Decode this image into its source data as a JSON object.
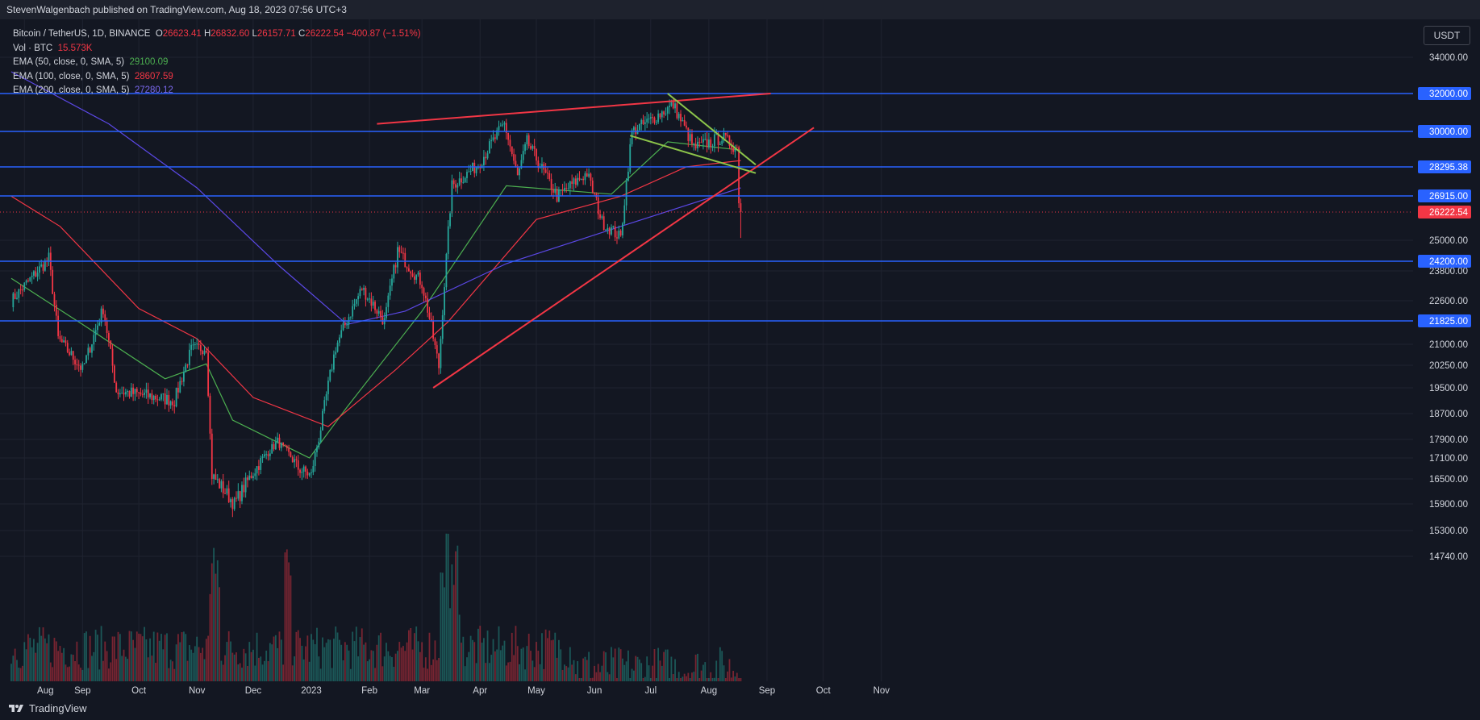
{
  "header": {
    "publisher": "StevenWalgenbach published on TradingView.com, Aug 18, 2023 07:56 UTC+3"
  },
  "legend": {
    "symbol": "Bitcoin / TetherUS, 1D, BINANCE",
    "o_label": "O",
    "o": "26623.41",
    "h_label": "H",
    "h": "26832.60",
    "l_label": "L",
    "l": "26157.71",
    "c_label": "C",
    "c": "26222.54",
    "change": "−400.87 (−1.51%)",
    "vol_label": "Vol · BTC",
    "vol": "15.573K",
    "ema50_label": "EMA (50, close, 0, SMA, 5)",
    "ema50": "29100.09",
    "ema100_label": "EMA (100, close, 0, SMA, 5)",
    "ema100": "28607.59",
    "ema200_label": "EMA (200, close, 0, SMA, 5)",
    "ema200": "27280.12"
  },
  "currency_button": "USDT",
  "footer": {
    "brand": "TradingView"
  },
  "colors": {
    "background": "#131722",
    "grid": "#1f2330",
    "up": "#26a69a",
    "down": "#f23645",
    "ema50": "#4caf50",
    "ema100": "#f23645",
    "ema200": "#5b48e6",
    "hline": "#2962ff",
    "trend_red": "#f23645",
    "trend_green": "#8bc34a",
    "text": "#d1d4dc"
  },
  "chart_data": {
    "type": "candlestick",
    "title": "Bitcoin / TetherUS, 1D, BINANCE",
    "y_axis_ticks": [
      "34000.00",
      "25000.00",
      "23800.00",
      "22600.00",
      "21000.00",
      "20250.00",
      "19500.00",
      "18700.00",
      "17900.00",
      "17100.00",
      "16500.00",
      "15900.00",
      "15300.00",
      "14740.00"
    ],
    "x_axis_labels": [
      "Aug",
      "Sep",
      "Oct",
      "Nov",
      "Dec",
      "2023",
      "Feb",
      "Mar",
      "Apr",
      "May",
      "Jun",
      "Jul",
      "Aug",
      "Sep",
      "Oct",
      "Nov"
    ],
    "horizontal_levels": [
      {
        "value": 32000,
        "label": "32000.00"
      },
      {
        "value": 30000,
        "label": "30000.00"
      },
      {
        "value": 28295.38,
        "label": "28295.38"
      },
      {
        "value": 26915,
        "label": "26915.00"
      },
      {
        "value": 24200,
        "label": "24200.00"
      },
      {
        "value": 21825,
        "label": "21825.00"
      }
    ],
    "last_price": {
      "value": 26222.54,
      "label": "26222.54"
    },
    "price_path": [
      {
        "date": "2022-07-25",
        "close": 22600
      },
      {
        "date": "2022-08-01",
        "close": 23200
      },
      {
        "date": "2022-08-14",
        "close": 24300
      },
      {
        "date": "2022-08-19",
        "close": 21200
      },
      {
        "date": "2022-09-01",
        "close": 20100
      },
      {
        "date": "2022-09-12",
        "close": 22300
      },
      {
        "date": "2022-09-19",
        "close": 19400
      },
      {
        "date": "2022-10-01",
        "close": 19300
      },
      {
        "date": "2022-10-20",
        "close": 19100
      },
      {
        "date": "2022-10-29",
        "close": 20800
      },
      {
        "date": "2022-11-06",
        "close": 20900
      },
      {
        "date": "2022-11-09",
        "close": 16600
      },
      {
        "date": "2022-11-21",
        "close": 15900
      },
      {
        "date": "2022-12-05",
        "close": 17000
      },
      {
        "date": "2022-12-14",
        "close": 17800
      },
      {
        "date": "2022-12-25",
        "close": 16800
      },
      {
        "date": "2023-01-01",
        "close": 16600
      },
      {
        "date": "2023-01-14",
        "close": 20900
      },
      {
        "date": "2023-01-28",
        "close": 23100
      },
      {
        "date": "2023-02-09",
        "close": 21800
      },
      {
        "date": "2023-02-16",
        "close": 24600
      },
      {
        "date": "2023-03-01",
        "close": 23300
      },
      {
        "date": "2023-03-10",
        "close": 20200
      },
      {
        "date": "2023-03-17",
        "close": 27400
      },
      {
        "date": "2023-03-31",
        "close": 28400
      },
      {
        "date": "2023-04-14",
        "close": 30400
      },
      {
        "date": "2023-04-21",
        "close": 27800
      },
      {
        "date": "2023-04-26",
        "close": 29500
      },
      {
        "date": "2023-05-12",
        "close": 26900
      },
      {
        "date": "2023-05-28",
        "close": 28000
      },
      {
        "date": "2023-06-05",
        "close": 25800
      },
      {
        "date": "2023-06-15",
        "close": 25100
      },
      {
        "date": "2023-06-21",
        "close": 30000
      },
      {
        "date": "2023-07-01",
        "close": 30600
      },
      {
        "date": "2023-07-13",
        "close": 31400
      },
      {
        "date": "2023-07-24",
        "close": 29200
      },
      {
        "date": "2023-08-08",
        "close": 29700
      },
      {
        "date": "2023-08-16",
        "close": 29200
      },
      {
        "date": "2023-08-17",
        "close": 26600
      },
      {
        "date": "2023-08-18",
        "close": 26222.54
      }
    ],
    "ema_series": [
      {
        "name": "EMA (50, close, 0, SMA, 5)",
        "points": [
          {
            "date": "2022-07-25",
            "value": 23500
          },
          {
            "date": "2022-09-01",
            "value": 21700
          },
          {
            "date": "2022-10-15",
            "value": 19800
          },
          {
            "date": "2022-11-06",
            "value": 20300
          },
          {
            "date": "2022-11-20",
            "value": 18500
          },
          {
            "date": "2022-12-31",
            "value": 17100
          },
          {
            "date": "2023-01-20",
            "value": 18900
          },
          {
            "date": "2023-03-01",
            "value": 22200
          },
          {
            "date": "2023-04-15",
            "value": 27400
          },
          {
            "date": "2023-06-10",
            "value": 27000
          },
          {
            "date": "2023-07-10",
            "value": 29500
          },
          {
            "date": "2023-08-18",
            "value": 29100
          }
        ]
      },
      {
        "name": "EMA (100, close, 0, SMA, 5)",
        "points": [
          {
            "date": "2022-07-25",
            "value": 26900
          },
          {
            "date": "2022-08-20",
            "value": 25600
          },
          {
            "date": "2022-10-01",
            "value": 22300
          },
          {
            "date": "2022-11-01",
            "value": 21200
          },
          {
            "date": "2022-12-01",
            "value": 19200
          },
          {
            "date": "2023-01-10",
            "value": 18300
          },
          {
            "date": "2023-02-15",
            "value": 20100
          },
          {
            "date": "2023-03-15",
            "value": 21800
          },
          {
            "date": "2023-05-01",
            "value": 25900
          },
          {
            "date": "2023-06-15",
            "value": 26900
          },
          {
            "date": "2023-07-20",
            "value": 28300
          },
          {
            "date": "2023-08-18",
            "value": 28600
          }
        ]
      },
      {
        "name": "EMA (200, close, 0, SMA, 5)",
        "points": [
          {
            "date": "2022-07-25",
            "value": 33200
          },
          {
            "date": "2022-09-15",
            "value": 30400
          },
          {
            "date": "2022-11-01",
            "value": 27300
          },
          {
            "date": "2022-12-15",
            "value": 24000
          },
          {
            "date": "2023-01-20",
            "value": 21700
          },
          {
            "date": "2023-02-20",
            "value": 22200
          },
          {
            "date": "2023-04-15",
            "value": 24100
          },
          {
            "date": "2023-06-15",
            "value": 25600
          },
          {
            "date": "2023-08-18",
            "value": 27300
          }
        ]
      }
    ],
    "trendlines": [
      {
        "color": "red",
        "from": {
          "date": "2023-02-05",
          "value": 30400
        },
        "to": {
          "date": "2023-09-03",
          "value": 32000
        }
      },
      {
        "color": "red",
        "from": {
          "date": "2023-03-07",
          "value": 19500
        },
        "to": {
          "date": "2023-09-26",
          "value": 30200
        }
      },
      {
        "color": "green",
        "from": {
          "date": "2023-07-10",
          "value": 32000
        },
        "to": {
          "date": "2023-08-26",
          "value": 28400
        }
      },
      {
        "color": "green",
        "from": {
          "date": "2023-06-20",
          "value": 29800
        },
        "to": {
          "date": "2023-08-26",
          "value": 28000
        }
      }
    ],
    "volume": {
      "unit": "BTC",
      "last": "15.573K"
    },
    "grid": true
  }
}
